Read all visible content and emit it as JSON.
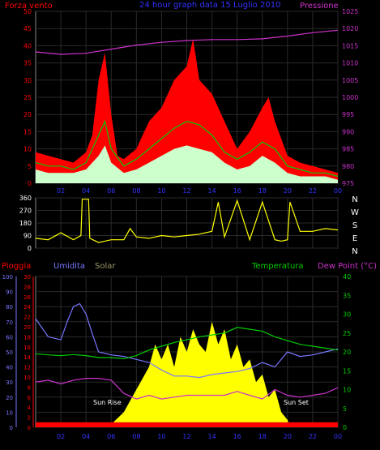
{
  "chart_data": [
    {
      "type": "line",
      "title": "24 hour graph data   15 Luglio 2010",
      "left_axis_label": "Forza vento",
      "right_axis_label": "Pressione",
      "x_ticks": [
        "02",
        "04",
        "06",
        "08",
        "10",
        "12",
        "14",
        "16",
        "18",
        "20",
        "22",
        "00"
      ],
      "y_left_ticks": [
        0,
        5,
        10,
        15,
        20,
        25,
        30,
        35,
        40,
        45,
        50
      ],
      "y_left_range": [
        0,
        50
      ],
      "y_right_ticks": [
        975,
        980,
        985,
        990,
        995,
        1000,
        1005,
        1010,
        1015,
        1020,
        1025
      ],
      "y_right_range": [
        975,
        1025
      ],
      "grid": true,
      "colors": {
        "gust": "#ff0000",
        "average": "#00cc00",
        "speed": "#ccffcc",
        "pressure": "#cc33cc",
        "axes": "#ff0000",
        "title": "#3333ff",
        "right_label": "#cc33cc"
      },
      "series": [
        {
          "key": "gust",
          "x": [
            0,
            1,
            2,
            3,
            4,
            4.5,
            5,
            5.5,
            6,
            6.5,
            7,
            8,
            9,
            10,
            11,
            12,
            12.5,
            13,
            13.5,
            14,
            15,
            16,
            17,
            18,
            18.5,
            19,
            20,
            21,
            22,
            23,
            24
          ],
          "values": [
            9,
            8,
            7,
            6,
            9,
            14,
            30,
            38,
            20,
            8,
            7,
            10,
            18,
            22,
            30,
            34,
            42,
            30,
            28,
            26,
            18,
            10,
            15,
            22,
            25,
            18,
            8,
            6,
            5,
            4,
            3
          ]
        },
        {
          "key": "average",
          "x": [
            0,
            1,
            2,
            3,
            4,
            5,
            5.5,
            6,
            7,
            8,
            9,
            10,
            11,
            12,
            13,
            14,
            15,
            16,
            17,
            18,
            19,
            20,
            21,
            22,
            23,
            24
          ],
          "values": [
            6,
            5,
            5,
            4,
            6,
            14,
            18,
            10,
            5,
            7,
            10,
            13,
            16,
            18,
            17,
            14,
            9,
            7,
            9,
            12,
            10,
            5,
            4,
            3,
            3,
            2
          ]
        },
        {
          "key": "speed",
          "x": [
            0,
            1,
            2,
            3,
            4,
            5,
            5.5,
            6,
            7,
            8,
            9,
            10,
            11,
            12,
            13,
            14,
            15,
            16,
            17,
            18,
            19,
            20,
            21,
            22,
            23,
            24
          ],
          "values": [
            4,
            3,
            3,
            3,
            4,
            8,
            11,
            6,
            3,
            4,
            6,
            8,
            10,
            11,
            10,
            9,
            6,
            4,
            5,
            8,
            6,
            3,
            2,
            2,
            2,
            1
          ]
        },
        {
          "key": "pressure",
          "x": [
            0,
            2,
            4,
            6,
            8,
            10,
            12,
            14,
            16,
            18,
            20,
            22,
            24
          ],
          "values": [
            1013.2,
            1012.5,
            1012.8,
            1014,
            1015.2,
            1016,
            1016.5,
            1016.8,
            1016.8,
            1017,
            1017.8,
            1018.8,
            1019.5
          ]
        }
      ]
    },
    {
      "type": "scatter",
      "title": "",
      "x_ticks": [
        "02",
        "04",
        "06",
        "08",
        "10",
        "12",
        "14",
        "16",
        "18",
        "20",
        "22",
        "00"
      ],
      "y_left_ticks": [
        0,
        90,
        180,
        270,
        360
      ],
      "y_left_range": [
        0,
        360
      ],
      "y_right_labels": [
        "N",
        "W",
        "S",
        "E",
        "N"
      ],
      "grid": true,
      "colors": {
        "direction": "#ffff00"
      },
      "series": [
        {
          "key": "direction",
          "x": [
            0,
            1,
            2,
            3,
            3.6,
            3.7,
            4.2,
            4.3,
            5,
            6,
            7,
            7.5,
            8,
            9,
            10,
            11,
            12,
            13,
            14,
            14.5,
            15,
            16,
            17,
            18,
            19,
            19.5,
            20,
            20.2,
            21,
            22,
            23,
            24
          ],
          "values": [
            70,
            60,
            110,
            60,
            90,
            350,
            350,
            70,
            40,
            60,
            60,
            140,
            80,
            70,
            90,
            80,
            90,
            100,
            120,
            330,
            80,
            340,
            60,
            330,
            60,
            50,
            60,
            330,
            120,
            120,
            140,
            130
          ]
        }
      ]
    },
    {
      "type": "line",
      "title": "",
      "labels": {
        "rain": "Pioggia",
        "humidity": "Umidita",
        "solar": "Solar",
        "temperature": "Temperatura",
        "dewpoint": "Dew Point (°C)"
      },
      "annotations": [
        "Sun Rise",
        "Sun Set"
      ],
      "x_ticks": [
        "02",
        "04",
        "06",
        "08",
        "10",
        "12",
        "14",
        "16",
        "18",
        "20",
        "22",
        "00"
      ],
      "y_humidity_ticks": [
        0,
        10,
        20,
        30,
        40,
        50,
        60,
        70,
        80,
        90,
        100
      ],
      "y_rain_ticks": [
        0,
        2,
        4,
        6,
        8,
        10,
        12,
        14,
        16,
        18,
        20,
        22,
        24,
        26,
        28,
        30
      ],
      "y_temp_ticks": [
        0,
        5,
        10,
        15,
        20,
        25,
        30,
        35,
        40
      ],
      "ranges": {
        "humidity": [
          0,
          100
        ],
        "rain": [
          0,
          30
        ],
        "temperature": [
          0,
          40
        ]
      },
      "grid": true,
      "colors": {
        "rain": "#ff0000",
        "humidity": "#7777ff",
        "solar": "#ffff00",
        "temperature": "#00cc00",
        "dewpoint": "#cc33cc",
        "solar_label": "#999966"
      },
      "series": [
        {
          "key": "humidity",
          "x": [
            0,
            1,
            2,
            2.5,
            3,
            3.5,
            4,
            4.5,
            5,
            6,
            7,
            8,
            9,
            10,
            11,
            12,
            13,
            14,
            15,
            16,
            17,
            18,
            19,
            20,
            21,
            22,
            23,
            24
          ],
          "values": [
            72,
            60,
            58,
            70,
            80,
            82,
            75,
            62,
            50,
            48,
            47,
            45,
            43,
            38,
            34,
            34,
            33,
            35,
            36,
            37,
            39,
            43,
            40,
            50,
            47,
            48,
            50,
            52
          ]
        },
        {
          "key": "temperature",
          "x": [
            0,
            1,
            2,
            3,
            4,
            5,
            6,
            7,
            8,
            9,
            10,
            11,
            12,
            13,
            14,
            15,
            16,
            17,
            18,
            19,
            20,
            21,
            22,
            23,
            24
          ],
          "values": [
            19.5,
            19.2,
            19,
            19.3,
            19,
            18.5,
            18.5,
            18.2,
            19,
            20.5,
            21.5,
            22.5,
            23.2,
            24,
            24.5,
            25,
            26.5,
            26,
            25.5,
            24,
            23,
            22,
            21.5,
            21,
            20.5
          ]
        },
        {
          "key": "dewpoint",
          "x": [
            0,
            1,
            2,
            3,
            4,
            5,
            6,
            7,
            8,
            9,
            10,
            11,
            12,
            13,
            14,
            15,
            16,
            17,
            18,
            19,
            20,
            21,
            22,
            23,
            24
          ],
          "values": [
            12,
            12.5,
            11.5,
            12.5,
            13,
            13,
            12.5,
            9,
            7.5,
            8.5,
            7.5,
            8,
            8.5,
            8.5,
            8.5,
            8.5,
            9.5,
            8.5,
            7.5,
            10,
            8.5,
            8,
            8.5,
            9,
            10.5
          ]
        },
        {
          "key": "solar",
          "x": [
            0,
            5.8,
            6,
            7,
            8,
            9,
            9.5,
            10,
            10.5,
            11,
            11.5,
            12,
            12.5,
            13,
            13.5,
            14,
            14.5,
            15,
            15.5,
            16,
            16.5,
            17,
            17.5,
            18,
            18.5,
            19,
            19.5,
            20,
            20.2,
            24
          ],
          "values": [
            0,
            0,
            2,
            10,
            25,
            40,
            55,
            45,
            55,
            40,
            60,
            50,
            65,
            55,
            50,
            70,
            55,
            65,
            45,
            55,
            40,
            45,
            30,
            35,
            20,
            25,
            10,
            5,
            0,
            0
          ]
        },
        {
          "key": "rain",
          "x": [
            0,
            24
          ],
          "values": [
            1,
            1
          ]
        }
      ]
    }
  ],
  "sun_rise_label": "Sun Rise",
  "sun_set_label": "Sun Set"
}
